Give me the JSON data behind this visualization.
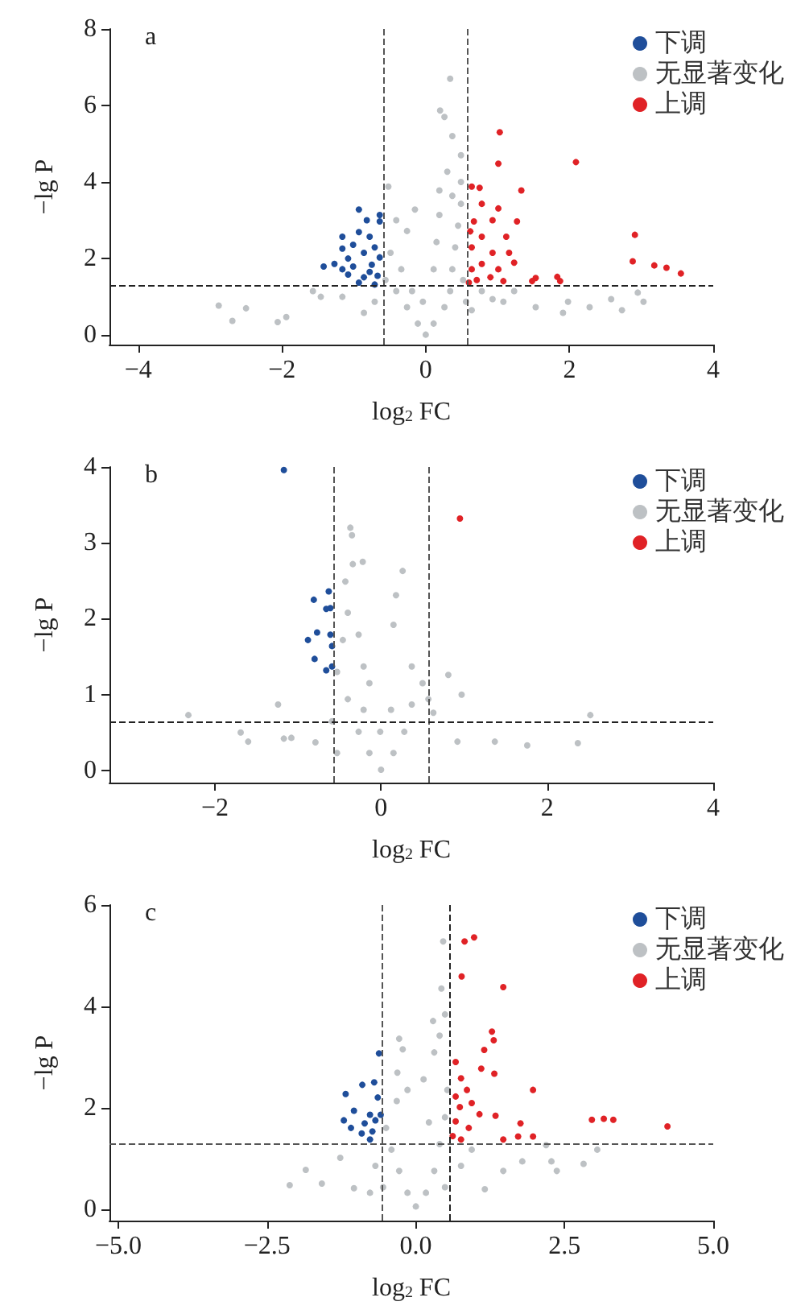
{
  "chart_data": [
    {
      "type": "scatter",
      "title": "a",
      "xlabel": "log$_{2}$ FC",
      "ylabel": "−lg P",
      "xlim": [
        -4.4,
        4
      ],
      "ylim": [
        -0.25,
        8
      ],
      "xticks": [
        {
          "value": -4,
          "label": "−4"
        },
        {
          "value": -2,
          "label": "−2"
        },
        0,
        2,
        4
      ],
      "yticks": [
        0,
        2,
        4,
        6,
        8
      ],
      "legend": "top right",
      "grid": false,
      "marker": "circle",
      "ref_lines": [
        {
          "axis": "x",
          "value": -0.58,
          "label": null,
          "color": "#555555",
          "line_style": "dashed"
        },
        {
          "axis": "x",
          "value": 0.58,
          "label": null,
          "color": "#555555",
          "line_style": "dashed"
        },
        {
          "axis": "y",
          "value": 1.3,
          "label": null,
          "color": "#222222",
          "line_style": "dashed"
        }
      ],
      "series": [
        {
          "name": "下调",
          "color": "#1f4e9a",
          "x": [
            -0.93,
            -0.82,
            -0.64,
            -0.64,
            -1.16,
            -0.93,
            -0.78,
            -1.01,
            -1.16,
            -0.71,
            -0.86,
            -1.08,
            -0.64,
            -1.42,
            -1.27,
            -1.01,
            -0.75,
            -1.08,
            -0.86,
            -0.67,
            -0.93,
            -0.71,
            -1.16,
            -0.78
          ],
          "values": [
            3.28,
            3.0,
            3.14,
            2.97,
            2.57,
            2.69,
            2.57,
            2.36,
            2.26,
            2.29,
            2.15,
            2.0,
            2.03,
            1.79,
            1.86,
            1.79,
            1.84,
            1.58,
            1.51,
            1.55,
            1.37,
            1.32,
            1.72,
            1.65
          ]
        },
        {
          "name": "无显著变化",
          "color": "#bdc1c4",
          "x": [
            0.34,
            0.2,
            0.26,
            0.37,
            0.49,
            0.3,
            0.49,
            -0.52,
            -0.15,
            -0.26,
            -0.41,
            -2.88,
            -2.69,
            -2.5,
            -2.06,
            -1.94,
            -1.57,
            -1.46,
            -1.16,
            2.58,
            2.73,
            3.03,
            2.95,
            1.98,
            2.28,
            1.53,
            1.91,
            1.23,
            0.93,
            0.64,
            0,
            -0.11,
            0.11,
            -0.26,
            0.26,
            -0.41,
            0.34,
            -0.56,
            -0.71,
            -0.86,
            0.37,
            0.41,
            0.45,
            0.49,
            0.19,
            0.15,
            0.11,
            -0.04,
            -0.19,
            -0.34,
            -0.49,
            0.52,
            0.56,
            0.78,
            1.08,
            0.19,
            0.37
          ],
          "values": [
            6.7,
            5.87,
            5.7,
            5.2,
            4.7,
            4.27,
            4.0,
            3.88,
            3.28,
            2.72,
            3.0,
            0.77,
            0.37,
            0.7,
            0.34,
            0.47,
            1.15,
            1.0,
            1.0,
            0.94,
            0.65,
            0.87,
            1.11,
            0.87,
            0.73,
            0.73,
            0.58,
            1.15,
            0.94,
            0.65,
            0.01,
            0.3,
            0.3,
            0.73,
            0.73,
            1.15,
            1.15,
            1.44,
            0.87,
            0.58,
            1.72,
            2.29,
            2.86,
            3.43,
            3.14,
            2.43,
            1.72,
            0.87,
            1.15,
            1.72,
            2.15,
            1.44,
            0.87,
            1.15,
            0.87,
            3.78,
            3.64
          ]
        },
        {
          "name": "上调",
          "color": "#e02226",
          "x": [
            1.03,
            2.09,
            1.01,
            1.33,
            0.64,
            0.75,
            0.78,
            1.01,
            1.27,
            0.93,
            2.91,
            0.67,
            1.12,
            0.78,
            0.64,
            0.93,
            1.16,
            2.88,
            3.18,
            3.35,
            3.55,
            1.23,
            0.78,
            0.64,
            1.01,
            1.83,
            1.53,
            1.87,
            1.48,
            1.08,
            0.71,
            0.6,
            0.9,
            0.62
          ],
          "values": [
            5.3,
            4.52,
            4.48,
            3.78,
            3.88,
            3.85,
            3.43,
            3.31,
            2.97,
            3.0,
            2.62,
            2.97,
            2.57,
            2.57,
            2.29,
            2.15,
            2.15,
            1.93,
            1.82,
            1.76,
            1.61,
            1.89,
            1.86,
            1.72,
            1.72,
            1.52,
            1.49,
            1.41,
            1.41,
            1.41,
            1.44,
            1.37,
            1.51,
            2.71
          ]
        }
      ]
    },
    {
      "type": "scatter",
      "title": "b",
      "xlabel": "log$_{2}$ FC",
      "ylabel": "−lg P",
      "xlim": [
        -3.27,
        4
      ],
      "ylim": [
        -0.16,
        4
      ],
      "xticks": [
        {
          "value": -2,
          "label": "−2"
        },
        0,
        2,
        4
      ],
      "yticks": [
        0,
        1,
        2,
        3,
        4
      ],
      "legend": "top right",
      "grid": false,
      "marker": "circle",
      "ref_lines": [
        {
          "axis": "x",
          "value": -0.58,
          "label": null,
          "color": "#555555",
          "line_style": "dashed"
        },
        {
          "axis": "x",
          "value": 0.58,
          "label": null,
          "color": "#555555",
          "line_style": "dashed"
        },
        {
          "axis": "y",
          "value": 0.65,
          "label": null,
          "color": "#222222",
          "line_style": "dashed"
        }
      ],
      "series": [
        {
          "name": "下调",
          "color": "#1f4e9a",
          "x": [
            -1.17,
            -0.63,
            -0.81,
            -0.61,
            -0.66,
            -0.77,
            -0.61,
            -0.88,
            -0.59,
            -0.8,
            -0.59,
            -0.66
          ],
          "values": [
            3.96,
            2.36,
            2.25,
            2.14,
            2.13,
            1.82,
            1.79,
            1.72,
            1.64,
            1.47,
            1.37,
            1.32
          ]
        },
        {
          "name": "无显著变化",
          "color": "#bdc1c4",
          "x": [
            -0.37,
            -0.35,
            -0.22,
            -0.34,
            0.26,
            -0.43,
            0.18,
            0.15,
            0.37,
            0.81,
            0.97,
            -1.24,
            -2.32,
            -1.69,
            -1.6,
            -1.17,
            -1.08,
            -0.79,
            2.52,
            2.37,
            1.76,
            1.37,
            0.92,
            0.63,
            0,
            -0.14,
            0.15,
            -0.27,
            0.28,
            -0.4,
            0.37,
            -0.53,
            -0.21,
            -0.46,
            -0.27,
            -0.4,
            -0.14,
            0.5,
            0.57,
            -0.53,
            -0.59,
            -0.01,
            0.12,
            -0.21
          ],
          "values": [
            3.2,
            3.1,
            2.75,
            2.72,
            2.63,
            2.49,
            2.31,
            1.92,
            1.37,
            1.26,
            1.0,
            0.87,
            0.73,
            0.5,
            0.38,
            0.42,
            0.43,
            0.37,
            0.73,
            0.36,
            0.33,
            0.38,
            0.38,
            0.76,
            0.01,
            0.23,
            0.23,
            0.51,
            0.51,
            0.94,
            0.87,
            1.3,
            1.37,
            1.72,
            1.79,
            2.08,
            1.15,
            1.15,
            0.94,
            0.23,
            0.65,
            0.51,
            0.8,
            0.8
          ]
        },
        {
          "name": "上调",
          "color": "#e02226",
          "x": [
            0.95
          ],
          "values": [
            3.32
          ]
        }
      ]
    },
    {
      "type": "scatter",
      "title": "c",
      "xlabel": "log$_{2}$ FC",
      "ylabel": "−lg P",
      "xlim": [
        -5.15,
        5
      ],
      "ylim": [
        -0.23,
        6
      ],
      "xticks": [
        {
          "value": -5,
          "label": "−5.0"
        },
        {
          "value": -2.5,
          "label": "−2.5"
        },
        {
          "value": 0,
          "label": "0.0"
        },
        2.5,
        {
          "value": 5,
          "label": "5.0"
        }
      ],
      "yticks": [
        0,
        2,
        4,
        6
      ],
      "legend": "top right",
      "grid": false,
      "marker": "circle",
      "ref_lines": [
        {
          "axis": "x",
          "value": -0.58,
          "label": null,
          "color": "#555555",
          "line_style": "dashed"
        },
        {
          "axis": "x",
          "value": 0.58,
          "label": null,
          "color": "#222222",
          "line_style": "dashed"
        },
        {
          "axis": "y",
          "value": 1.3,
          "label": null,
          "color": "#555555",
          "line_style": "dashed"
        }
      ],
      "series": [
        {
          "name": "下调",
          "color": "#1f4e9a",
          "x": [
            -0.62,
            -0.9,
            -0.7,
            -1.18,
            -0.64,
            -1.04,
            -0.77,
            -0.59,
            -1.21,
            -0.86,
            -0.68,
            -1.09,
            -0.91,
            -0.73,
            -0.77
          ],
          "values": [
            3.07,
            2.45,
            2.5,
            2.27,
            2.2,
            1.94,
            1.86,
            1.86,
            1.75,
            1.69,
            1.75,
            1.6,
            1.49,
            1.53,
            1.37
          ]
        },
        {
          "name": "无显著变化",
          "color": "#bdc1c4",
          "x": [
            0.46,
            0.43,
            0.49,
            0.29,
            -0.28,
            -0.22,
            -0.31,
            -0.32,
            -0.14,
            0.13,
            0.31,
            0.4,
            2.19,
            3.05,
            2.82,
            2.37,
            2.28,
            1.79,
            1.47,
            1.16,
            -2.12,
            -1.85,
            -1.58,
            -1.27,
            -1.04,
            -0.77,
            0,
            -0.14,
            0.17,
            -0.28,
            0.31,
            -0.41,
            0.4,
            0.49,
            0.22,
            -0.5,
            -0.68,
            0.76,
            0.94,
            0.49,
            -0.55,
            0.53
          ],
          "values": [
            5.28,
            4.35,
            3.84,
            3.71,
            3.36,
            3.15,
            2.69,
            2.13,
            2.35,
            2.56,
            3.09,
            3.42,
            1.26,
            1.17,
            0.89,
            0.75,
            0.94,
            0.94,
            0.75,
            0.39,
            0.47,
            0.77,
            0.5,
            1.01,
            0.41,
            0.32,
            0.05,
            0.32,
            0.32,
            0.75,
            0.75,
            1.17,
            1.28,
            1.81,
            1.71,
            1.6,
            0.85,
            0.85,
            1.17,
            0.43,
            0.43,
            2.35
          ]
        },
        {
          "name": "上调",
          "color": "#e02226",
          "x": [
            0.98,
            0.82,
            0.77,
            1.47,
            1.28,
            1.31,
            1.15,
            0.67,
            1.1,
            1.32,
            0.76,
            1.97,
            0.86,
            0.67,
            0.94,
            0.74,
            1.07,
            1.34,
            2.96,
            3.16,
            3.32,
            4.23,
            1.76,
            0.67,
            0.89,
            1.72,
            1.97,
            1.47,
            0.76,
            0.62
          ],
          "values": [
            5.36,
            5.28,
            4.59,
            4.38,
            3.5,
            3.33,
            3.14,
            2.9,
            2.77,
            2.67,
            2.58,
            2.35,
            2.35,
            2.22,
            2.09,
            2.01,
            1.87,
            1.84,
            1.76,
            1.78,
            1.76,
            1.63,
            1.69,
            1.73,
            1.6,
            1.43,
            1.43,
            1.37,
            1.37,
            1.44
          ]
        }
      ]
    }
  ]
}
